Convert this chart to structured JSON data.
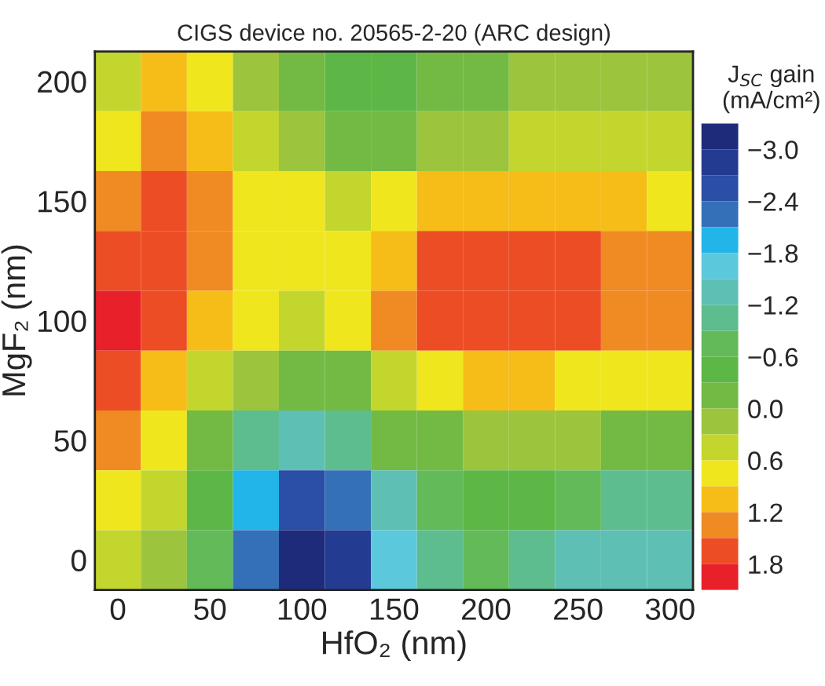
{
  "chart_data": {
    "type": "heatmap",
    "title": "CIGS device no. 20565-2-20 (ARC design)",
    "xlabel": "HfO₂ (nm)",
    "ylabel": "MgF₂ (nm)",
    "clabel": "J$_{SC}$ gain\n(mA/cm²)",
    "categories": [
      "0",
      null,
      "50",
      null,
      "100",
      null,
      "150",
      null,
      "200",
      null,
      "250",
      null,
      "300"
    ],
    "y_categories": [
      "200",
      null,
      "150",
      null,
      "100",
      null,
      "50",
      null,
      "0"
    ],
    "cells": [
      [
        0.6,
        1.1,
        0.7,
        0.3,
        -0.2,
        -0.5,
        -0.4,
        -0.2,
        0.0,
        0.1,
        0.1,
        0.2,
        0.2
      ],
      [
        0.9,
        1.4,
        1.2,
        0.6,
        0.3,
        0.0,
        0.0,
        0.2,
        0.3,
        0.35,
        0.35,
        0.4,
        0.4
      ],
      [
        1.3,
        1.7,
        1.5,
        0.8,
        0.7,
        0.6,
        0.8,
        1.0,
        1.1,
        1.1,
        1.1,
        1.0,
        0.9
      ],
      [
        1.6,
        1.7,
        1.4,
        0.9,
        0.7,
        0.8,
        1.2,
        1.6,
        1.75,
        1.75,
        1.6,
        1.4,
        1.3
      ],
      [
        1.9,
        1.6,
        1.1,
        0.7,
        0.6,
        0.8,
        1.3,
        1.6,
        1.7,
        1.7,
        1.6,
        1.4,
        1.3
      ],
      [
        1.7,
        1.2,
        0.6,
        0.1,
        -0.2,
        0.0,
        0.6,
        0.9,
        1.0,
        1.0,
        0.9,
        0.8,
        0.7
      ],
      [
        1.3,
        0.8,
        -0.1,
        -0.9,
        -1.2,
        -0.9,
        -0.2,
        0.0,
        0.1,
        0.1,
        0.1,
        0.0,
        -0.1
      ],
      [
        0.7,
        0.5,
        -0.5,
        -1.8,
        -2.6,
        -2.2,
        -1.2,
        -0.6,
        -0.4,
        -0.5,
        -0.7,
        -0.9,
        -1.0
      ],
      [
        0.4,
        0.2,
        -0.6,
        -2.2,
        -3.2,
        -2.7,
        -1.6,
        -0.9,
        -0.8,
        -0.9,
        -1.2,
        -1.3,
        -1.2
      ]
    ],
    "clim": [
      2.1,
      -3.3
    ],
    "cticks": [
      {
        "value": -3.0,
        "label": "−3.0"
      },
      {
        "value": -2.4,
        "label": "−2.4"
      },
      {
        "value": -1.8,
        "label": "−1.8"
      },
      {
        "value": -1.2,
        "label": "−1.2"
      },
      {
        "value": -0.6,
        "label": "−0.6"
      },
      {
        "value": 0,
        "label": "0.0"
      },
      {
        "value": 0.6,
        "label": "0.6"
      },
      {
        "value": 1.2,
        "label": "1.2"
      },
      {
        "value": 1.8,
        "label": "1.8"
      }
    ],
    "colors": [
      "#1e2a7a",
      "#233c92",
      "#2b4ea6",
      "#3470b8",
      "#21b5ea",
      "#5cc8dc",
      "#5ec0b4",
      "#5dbd8e",
      "#62bb58",
      "#5db746",
      "#73ba44",
      "#9cc43c",
      "#c3d62e",
      "#f0e61e",
      "#f6bc18",
      "#f08a22",
      "#ec4d25",
      "#e8202a"
    ]
  }
}
